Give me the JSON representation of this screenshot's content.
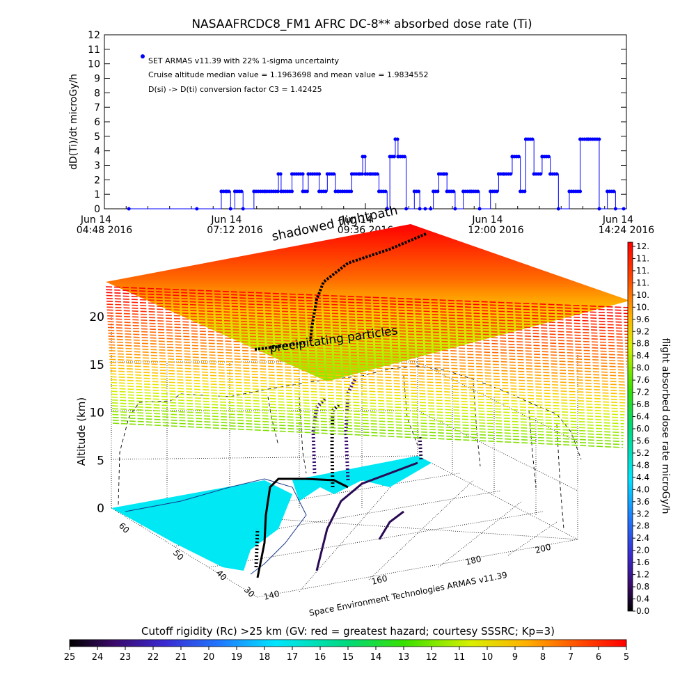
{
  "chart_data": [
    {
      "type": "line",
      "title": "NASAAFRCDC8_FM1 AFRC DC-8** absorbed dose rate (Ti)",
      "ylabel": "dD(Ti)/dt microGy/h",
      "ylim": [
        0,
        12
      ],
      "y_ticks": [
        "0",
        "1",
        "2",
        "3",
        "4",
        "5",
        "6",
        "7",
        "8",
        "9",
        "10",
        "11",
        "12"
      ],
      "x_ticks": [
        {
          "line1": "Jun 14",
          "line2": "04:48 2016"
        },
        {
          "line1": "Jun 14",
          "line2": "07:12 2016"
        },
        {
          "line1": "Jun 14",
          "line2": "09:36 2016"
        },
        {
          "line1": "Jun 14",
          "line2": "12:00 2016"
        },
        {
          "line1": "Jun 14",
          "line2": "14:24 2016"
        }
      ],
      "xlim_hours": [
        4.8,
        14.4
      ],
      "legend": {
        "placement": "top-left",
        "lines": [
          "SET ARMAS v11.39 with 22% 1-sigma uncertainty",
          "Cruise altitude median value = 1.1963698 and mean value = 1.9834552",
          "D(si) -> D(ti) conversion factor C3 = 1.42425"
        ]
      },
      "series": [
        {
          "name": "SET ARMAS v11.39",
          "color": "#0000ff",
          "x_hours": [
            5.25,
            6.5,
            6.95,
            7.05,
            7.12,
            7.2,
            7.35,
            7.55,
            7.75,
            8.0,
            8.05,
            8.25,
            8.45,
            8.55,
            8.75,
            8.9,
            9.05,
            9.1,
            9.35,
            9.5,
            9.55,
            9.6,
            9.7,
            9.78,
            9.85,
            10.0,
            10.05,
            10.15,
            10.2,
            10.35,
            10.5,
            10.6,
            10.7,
            10.8,
            10.85,
            10.95,
            11.05,
            11.1,
            11.25,
            11.4,
            11.55,
            11.7,
            11.9,
            12.05,
            12.15,
            12.3,
            12.45,
            12.55,
            12.7,
            12.85,
            13.0,
            13.15,
            13.35,
            13.55,
            13.7,
            13.9,
            14.05,
            14.2,
            14.35
          ],
          "y_values": [
            0.0,
            0.0,
            1.2,
            1.2,
            0.0,
            1.2,
            0.0,
            1.2,
            1.2,
            2.4,
            1.2,
            2.4,
            1.2,
            2.4,
            1.2,
            2.4,
            1.2,
            1.2,
            2.4,
            2.4,
            3.6,
            2.4,
            2.4,
            2.4,
            1.2,
            0.0,
            3.6,
            4.8,
            3.6,
            0.0,
            1.2,
            0.0,
            0.0,
            0.0,
            1.2,
            2.4,
            2.4,
            1.2,
            0.0,
            1.2,
            1.2,
            0.0,
            1.2,
            2.4,
            2.4,
            3.6,
            1.2,
            4.8,
            2.4,
            3.6,
            2.4,
            0.0,
            1.2,
            4.8,
            4.8,
            0.0,
            1.2,
            0.0,
            0.0
          ]
        }
      ]
    },
    {
      "type": "scatter",
      "title": "",
      "zlabel": "Altitude (km)",
      "zlim": [
        0,
        20
      ],
      "z_ticks": [
        "0",
        "5",
        "10",
        "15",
        "20"
      ],
      "lat_ticks": [
        "30",
        "40",
        "50",
        "60"
      ],
      "lon_ticks": [
        "140",
        "160",
        "180",
        "200"
      ],
      "annotations": [
        "shadowed flightpath",
        "precipitating particles",
        "Space Environment Technologies ARMAS v11.39"
      ],
      "colorbar": {
        "label": "flight absorbed dose rate microGy/h",
        "ticks": [
          "0.0",
          "0.4",
          "0.8",
          "1.2",
          "1.6",
          "2.0",
          "2.4",
          "2.8",
          "3.2",
          "3.6",
          "4.0",
          "4.4",
          "4.8",
          "5.2",
          "5.6",
          "6.0",
          "6.4",
          "6.8",
          "7.2",
          "7.6",
          "8.0",
          "8.4",
          "8.8",
          "9.2",
          "9.6",
          "10.",
          "10.",
          "11.",
          "11.",
          "11.",
          "12."
        ]
      },
      "rigidity_bar": {
        "label": "Cutoff rigidity (Rc) >25 km (GV: red = greatest hazard; courtesy SSSRC; Kp=3)",
        "ticks": [
          "25",
          "24",
          "23",
          "22",
          "21",
          "20",
          "19",
          "18",
          "17",
          "16",
          "15",
          "14",
          "13",
          "12",
          "11",
          "10",
          "9",
          "8",
          "7",
          "6",
          "5"
        ]
      }
    }
  ]
}
